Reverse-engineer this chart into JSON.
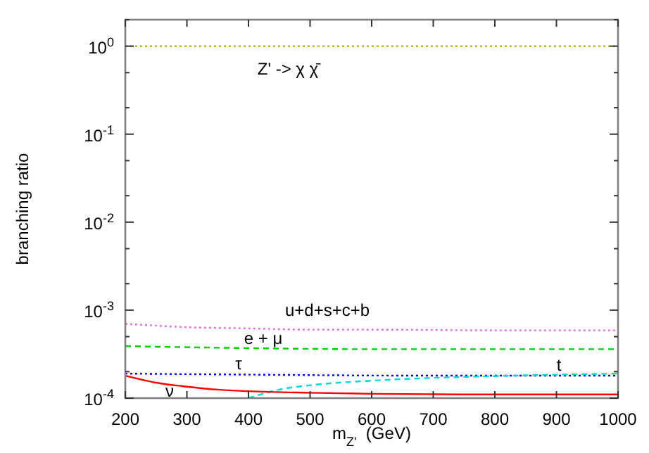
{
  "chart_data": {
    "type": "line",
    "xlabel": "m$_{Z'}$  (GeV)",
    "ylabel": "branching ratio",
    "log": "y",
    "grid": false,
    "xlim": [
      200,
      1000
    ],
    "xticks": [
      200,
      300,
      400,
      500,
      600,
      700,
      800,
      900,
      1000
    ],
    "ylim": [
      0.0001,
      2
    ],
    "yticks": [
      {
        "value": 0.0001,
        "label": "10$^{-4}$"
      },
      {
        "value": 0.0002,
        "label": null
      },
      {
        "value": 0.0005,
        "label": null
      },
      {
        "value": 0.001,
        "label": "10$^{-3}$"
      },
      {
        "value": 0.002,
        "label": null
      },
      {
        "value": 0.005,
        "label": null
      },
      {
        "value": 0.01,
        "label": "10$^{-2}$"
      },
      {
        "value": 0.02,
        "label": null
      },
      {
        "value": 0.05,
        "label": null
      },
      {
        "value": 0.1,
        "label": "10$^{-1}$"
      },
      {
        "value": 0.2,
        "label": null
      },
      {
        "value": 0.5,
        "label": null
      },
      {
        "value": 1,
        "label": "10$^{0}$"
      },
      {
        "value": 2,
        "label": null
      }
    ],
    "series": [
      {
        "name": "Z' -> χ χ̄",
        "color": "#b0b000",
        "line_style": "dotted",
        "x": [
          200,
          1000
        ],
        "values": [
          1,
          1
        ]
      },
      {
        "name": "u+d+s+c+b",
        "color": "#e070e0",
        "line_style": "dotted",
        "x": [
          200,
          300,
          400,
          500,
          600,
          800,
          1000
        ],
        "values": [
          0.0007,
          0.00064,
          0.00062,
          0.0006,
          0.0006,
          0.00059,
          0.00059
        ]
      },
      {
        "name": "e + μ",
        "color": "#00d000",
        "line_style": "dashed",
        "x": [
          200,
          400,
          600,
          1000
        ],
        "values": [
          0.00039,
          0.00037,
          0.00036,
          0.00036
        ]
      },
      {
        "name": "τ",
        "color": "#0000ff",
        "line_style": "dotted",
        "x": [
          200,
          400,
          700,
          1000
        ],
        "values": [
          0.00019,
          0.000185,
          0.00018,
          0.00018
        ]
      },
      {
        "name": "t",
        "color": "#00d8d8",
        "line_style": "dashed",
        "x": [
          400,
          450,
          500,
          600,
          700,
          800,
          1000
        ],
        "values": [
          0.0001,
          0.000125,
          0.00014,
          0.000158,
          0.00017,
          0.000178,
          0.00019
        ]
      },
      {
        "name": "ν",
        "color": "#ff0000",
        "line_style": "solid",
        "x": [
          200,
          250,
          300,
          350,
          400,
          500,
          600,
          800,
          1000
        ],
        "values": [
          0.00018,
          0.00015,
          0.000135,
          0.000125,
          0.00012,
          0.000115,
          0.000112,
          0.00011,
          0.00011
        ]
      }
    ]
  }
}
